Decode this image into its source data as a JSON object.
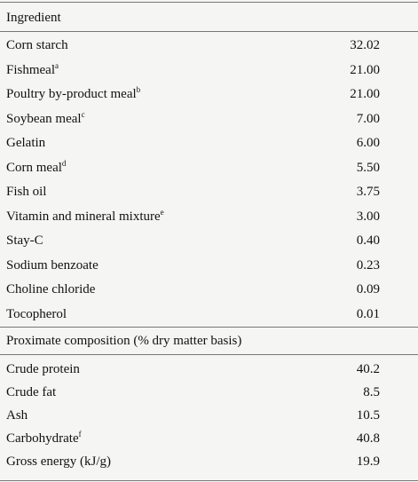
{
  "header": {
    "title": "Ingredient"
  },
  "ingredients": [
    {
      "name": "Corn starch",
      "value": "32.02"
    },
    {
      "name": "Fishmeal",
      "note": "a",
      "value": "21.00"
    },
    {
      "name": "Poultry by-product meal",
      "note": "b",
      "value": "21.00"
    },
    {
      "name": "Soybean meal",
      "note": "c",
      "value": "7.00"
    },
    {
      "name": "Gelatin",
      "value": "6.00"
    },
    {
      "name": "Corn meal",
      "note": "d",
      "value": "5.50"
    },
    {
      "name": "Fish oil",
      "value": "3.75"
    },
    {
      "name": "Vitamin and mineral mixture",
      "note": "e",
      "value": "3.00"
    },
    {
      "name": "Stay-C",
      "value": "0.40"
    },
    {
      "name": "Sodium benzoate",
      "value": "0.23"
    },
    {
      "name": "Choline chloride",
      "value": "0.09"
    },
    {
      "name": "Tocopherol",
      "value": "0.01"
    }
  ],
  "proximate": {
    "title": "Proximate composition (% dry matter basis)",
    "rows": [
      {
        "name": "Crude protein",
        "value": "40.2"
      },
      {
        "name": "Crude fat",
        "value": "8.5"
      },
      {
        "name": "Ash",
        "value": "10.5"
      },
      {
        "name": "Carbohydrate",
        "note": "f",
        "value": "40.8"
      },
      {
        "name": "Gross energy (kJ/g)",
        "value": "19.9"
      }
    ]
  }
}
